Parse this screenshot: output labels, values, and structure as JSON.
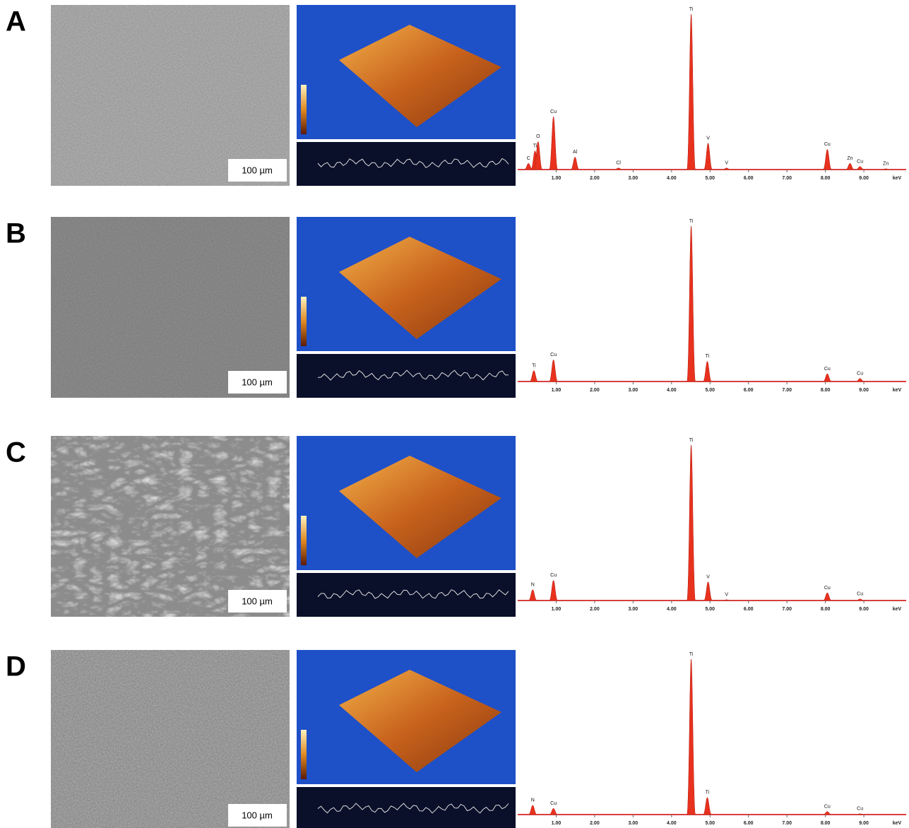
{
  "spectrum_axis": {
    "xlim": [
      0,
      10.1
    ],
    "ticks": [
      {
        "value": 1,
        "label": "1.00"
      },
      {
        "value": 2,
        "label": "2.00"
      },
      {
        "value": 3,
        "label": "3.00"
      },
      {
        "value": 4,
        "label": "4.00"
      },
      {
        "value": 5,
        "label": "5.00"
      },
      {
        "value": 6,
        "label": "6.00"
      },
      {
        "value": 7,
        "label": "7.00"
      },
      {
        "value": 8,
        "label": "8.00"
      },
      {
        "value": 9,
        "label": "9.00"
      }
    ],
    "unit": "keV"
  },
  "panels": [
    {
      "letter": "A",
      "scale_bar": "100 µm",
      "peaks": [
        {
          "label": "C",
          "kev": 0.28,
          "height": 0.04
        },
        {
          "label": "Ti",
          "kev": 0.45,
          "height": 0.12
        },
        {
          "label": "O",
          "kev": 0.53,
          "height": 0.18
        },
        {
          "label": "Cu",
          "kev": 0.93,
          "height": 0.34
        },
        {
          "label": "Al",
          "kev": 1.49,
          "height": 0.08
        },
        {
          "label": "Cl",
          "kev": 2.62,
          "height": 0.01
        },
        {
          "label": "Ti",
          "kev": 4.51,
          "height": 1.0
        },
        {
          "label": "V",
          "kev": 4.95,
          "height": 0.17
        },
        {
          "label": "V",
          "kev": 5.43,
          "height": 0.01
        },
        {
          "label": "Cu",
          "kev": 8.05,
          "height": 0.13
        },
        {
          "label": "Zn",
          "kev": 8.64,
          "height": 0.04
        },
        {
          "label": "Cu",
          "kev": 8.9,
          "height": 0.02
        },
        {
          "label": "Zn",
          "kev": 9.57,
          "height": 0.005
        }
      ]
    },
    {
      "letter": "B",
      "scale_bar": "100 µm",
      "peaks": [
        {
          "label": "Ti",
          "kev": 0.42,
          "height": 0.07
        },
        {
          "label": "Cu",
          "kev": 0.93,
          "height": 0.14
        },
        {
          "label": "Ti",
          "kev": 4.51,
          "height": 1.0
        },
        {
          "label": "Ti",
          "kev": 4.93,
          "height": 0.13
        },
        {
          "label": "Cu",
          "kev": 8.05,
          "height": 0.05
        },
        {
          "label": "Cu",
          "kev": 8.9,
          "height": 0.02
        }
      ]
    },
    {
      "letter": "C",
      "scale_bar": "100 µm",
      "peaks": [
        {
          "label": "N",
          "kev": 0.39,
          "height": 0.07
        },
        {
          "label": "Cu",
          "kev": 0.93,
          "height": 0.13
        },
        {
          "label": "Ti",
          "kev": 4.51,
          "height": 1.0
        },
        {
          "label": "V",
          "kev": 4.95,
          "height": 0.12
        },
        {
          "label": "V",
          "kev": 5.43,
          "height": 0.005
        },
        {
          "label": "Cu",
          "kev": 8.05,
          "height": 0.05
        },
        {
          "label": "Cu",
          "kev": 8.9,
          "height": 0.01
        }
      ]
    },
    {
      "letter": "D",
      "scale_bar": "100 µm",
      "peaks": [
        {
          "label": "N",
          "kev": 0.39,
          "height": 0.06
        },
        {
          "label": "Cu",
          "kev": 0.93,
          "height": 0.04
        },
        {
          "label": "Ti",
          "kev": 4.51,
          "height": 1.0
        },
        {
          "label": "Ti",
          "kev": 4.93,
          "height": 0.11
        },
        {
          "label": "Cu",
          "kev": 8.05,
          "height": 0.02
        },
        {
          "label": "Cu",
          "kev": 8.9,
          "height": 0.005
        }
      ]
    }
  ]
}
